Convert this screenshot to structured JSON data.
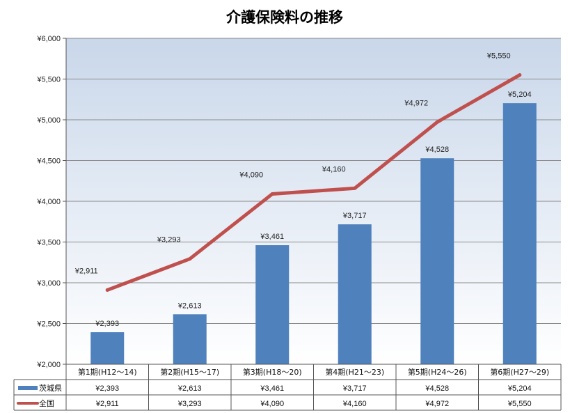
{
  "chart_data": {
    "type": "bar+line",
    "title": "介護保険料の推移",
    "categories": [
      "第1期(H12～14)",
      "第2期(H15～17)",
      "第3期(H18～20)",
      "第4期(H21～23)",
      "第5期(H24～26)",
      "第6期(H27～29)"
    ],
    "series": [
      {
        "name": "茨城県",
        "type": "bar",
        "color": "#4f81bd",
        "values": [
          2393,
          2613,
          3461,
          3717,
          4528,
          5204
        ],
        "labels": [
          "¥2,393",
          "¥2,613",
          "¥3,461",
          "¥3,717",
          "¥4,528",
          "¥5,204"
        ]
      },
      {
        "name": "全国",
        "type": "line",
        "color": "#c0504d",
        "values": [
          2911,
          3293,
          4090,
          4160,
          4972,
          5550
        ],
        "labels": [
          "¥2,911",
          "¥3,293",
          "¥4,090",
          "¥4,160",
          "¥4,972",
          "¥5,550"
        ]
      }
    ],
    "ylim": [
      2000,
      6000
    ],
    "yticks": [
      2000,
      2500,
      3000,
      3500,
      4000,
      4500,
      5000,
      5500,
      6000
    ],
    "ytick_labels": [
      "¥2,000",
      "¥2,500",
      "¥3,000",
      "¥3,500",
      "¥4,000",
      "¥4,500",
      "¥5,000",
      "¥5,500",
      "¥6,000"
    ],
    "grid": true,
    "legend": "data-table-below"
  }
}
